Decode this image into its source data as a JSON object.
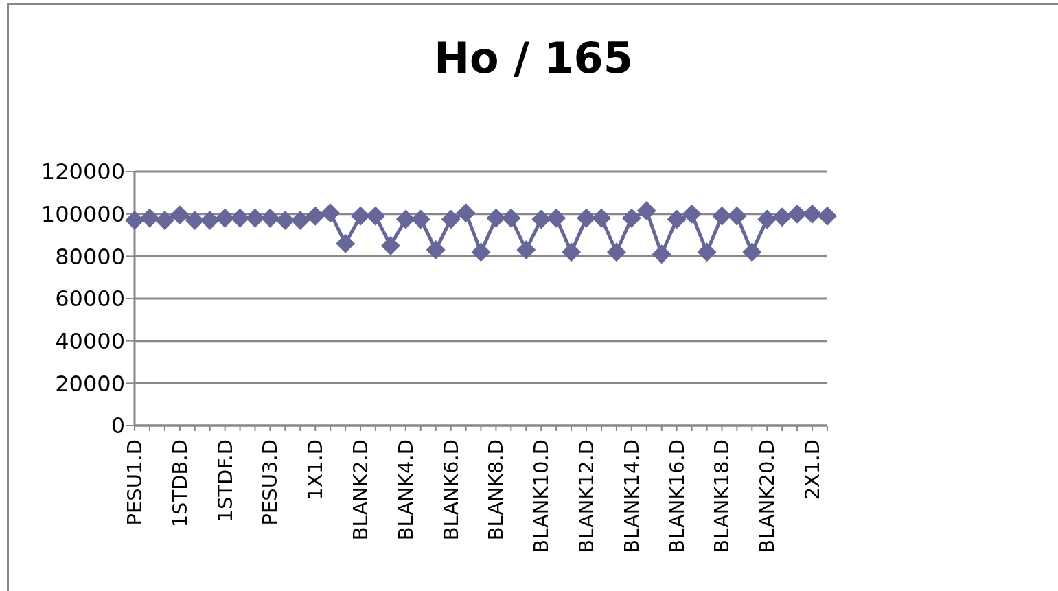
{
  "chart_data": {
    "type": "line",
    "title": "Ho / 165",
    "categories": [
      "PESU1.D",
      null,
      null,
      "1STDB.D",
      null,
      null,
      "1STDF.D",
      null,
      null,
      "PESU3.D",
      null,
      null,
      "1X1.D",
      null,
      null,
      "BLANK2.D",
      null,
      null,
      "BLANK4.D",
      null,
      null,
      "BLANK6.D",
      null,
      null,
      "BLANK8.D",
      null,
      null,
      "BLANK10.D",
      null,
      null,
      "BLANK12.D",
      null,
      null,
      "BLANK14.D",
      null,
      null,
      "BLANK16.D",
      null,
      null,
      "BLANK18.D",
      null,
      null,
      "BLANK20.D",
      null,
      null,
      "2X1.D",
      null
    ],
    "series": [
      {
        "color": "#666699",
        "values": [
          97000,
          98000,
          97000,
          99500,
          97000,
          97000,
          98000,
          98000,
          98000,
          98000,
          97000,
          97000,
          99000,
          100500,
          86000,
          99000,
          99000,
          85000,
          97500,
          97500,
          83000,
          97500,
          100500,
          82000,
          98000,
          98000,
          83000,
          97500,
          98000,
          82000,
          98000,
          98000,
          82000,
          98000,
          101500,
          81000,
          97500,
          100000,
          82000,
          99000,
          99000,
          82000,
          97500,
          98500,
          100000,
          100000,
          99000
        ]
      }
    ],
    "ylim": [
      0,
      120000
    ],
    "yticks": [
      0,
      20000,
      40000,
      60000,
      80000,
      100000,
      120000
    ],
    "grid": "y",
    "marker": "diamond",
    "line_style": "solid"
  }
}
